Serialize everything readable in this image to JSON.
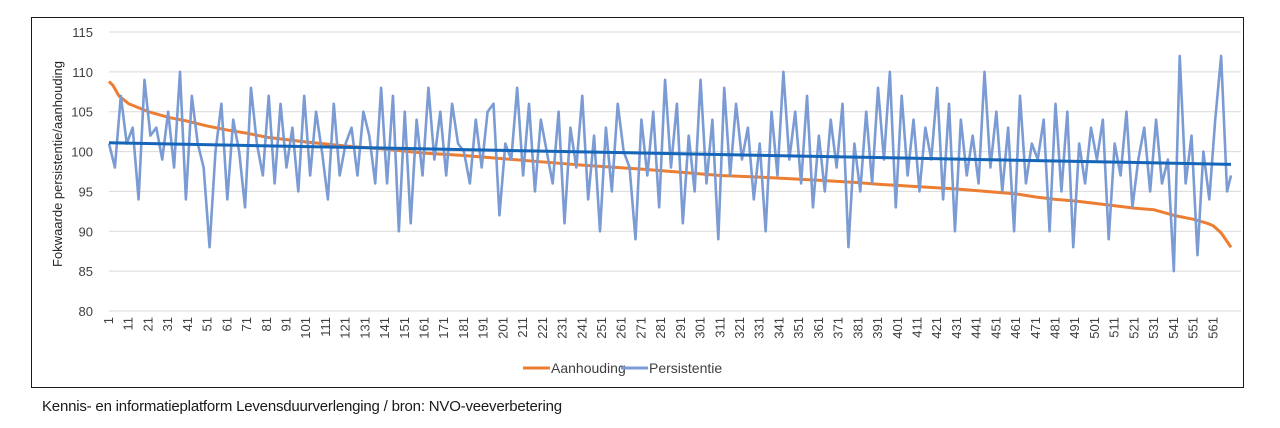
{
  "caption": "Kennis- en informatieplatform Levensduurverlenging / bron: NVO-veeverbetering",
  "chart_data": {
    "type": "line",
    "title": "",
    "xlabel": "",
    "ylabel": "Fokwaarde persistentie/aanhouding",
    "ylim": [
      80,
      115
    ],
    "yticks": [
      "80",
      "85",
      "90",
      "95",
      "100",
      "105",
      "110",
      "115"
    ],
    "xlim": [
      1,
      570
    ],
    "xticks": [
      "1",
      "11",
      "21",
      "31",
      "41",
      "51",
      "61",
      "71",
      "81",
      "91",
      "101",
      "111",
      "121",
      "131",
      "141",
      "151",
      "161",
      "171",
      "181",
      "191",
      "201",
      "211",
      "221",
      "231",
      "241",
      "251",
      "261",
      "271",
      "281",
      "291",
      "301",
      "311",
      "321",
      "331",
      "341",
      "351",
      "361",
      "371",
      "381",
      "391",
      "401",
      "411",
      "421",
      "431",
      "441",
      "451",
      "461",
      "471",
      "481",
      "491",
      "501",
      "511",
      "521",
      "531",
      "541",
      "551",
      "561"
    ],
    "grid": true,
    "legend_position": "bottom",
    "colors": {
      "aanhouding": "#ED7D31",
      "persistentie": "#7B9BD4",
      "trend": "#1565B8",
      "grid": "#D9D9D9"
    },
    "series": [
      {
        "name": "Aanhouding",
        "x": [
          1,
          3,
          6,
          11,
          16,
          21,
          31,
          41,
          51,
          61,
          71,
          81,
          91,
          101,
          121,
          141,
          161,
          181,
          201,
          221,
          241,
          271,
          291,
          311,
          331,
          361,
          381,
          391,
          411,
          431,
          451,
          461,
          471,
          481,
          491,
          501,
          511,
          521,
          531,
          541,
          551,
          558,
          561,
          565,
          570
        ],
        "values": [
          108.8,
          108.3,
          107.0,
          106.0,
          105.5,
          105.0,
          104.3,
          103.8,
          103.2,
          102.7,
          102.3,
          101.8,
          101.5,
          101.2,
          100.7,
          100.3,
          99.8,
          99.5,
          99.1,
          98.7,
          98.3,
          97.8,
          97.4,
          97.0,
          96.8,
          96.4,
          96.1,
          95.9,
          95.6,
          95.3,
          94.9,
          94.7,
          94.3,
          94.0,
          93.8,
          93.5,
          93.2,
          92.9,
          92.7,
          92.0,
          91.5,
          91.0,
          90.7,
          89.8,
          88.0
        ]
      },
      {
        "name": "Persistentie",
        "step": 3,
        "values": [
          101,
          98,
          107,
          101,
          103,
          94,
          109,
          102,
          103,
          99,
          105,
          98,
          110,
          94,
          107,
          101,
          98,
          88,
          100,
          106,
          94,
          104,
          100,
          93,
          108,
          101,
          97,
          107,
          96,
          106,
          98,
          103,
          95,
          107,
          97,
          105,
          100,
          94,
          106,
          97,
          101,
          103,
          97,
          105,
          102,
          96,
          108,
          96,
          107,
          90,
          105,
          91,
          104,
          97,
          108,
          99,
          105,
          97,
          106,
          101,
          100,
          96,
          104,
          98,
          105,
          106,
          92,
          101,
          99,
          108,
          97,
          106,
          95,
          104,
          100,
          96,
          105,
          91,
          103,
          98,
          107,
          94,
          102,
          90,
          103,
          95,
          106,
          100,
          98,
          89,
          104,
          97,
          105,
          93,
          109,
          98,
          106,
          91,
          102,
          95,
          109,
          96,
          104,
          89,
          108,
          97,
          106,
          99,
          103,
          94,
          101,
          90,
          105,
          97,
          110,
          99,
          105,
          96,
          107,
          93,
          102,
          95,
          104,
          98,
          106,
          88,
          101,
          95,
          105,
          96,
          108,
          99,
          110,
          93,
          107,
          97,
          104,
          95,
          103,
          99,
          108,
          94,
          106,
          90,
          104,
          97,
          102,
          96,
          110,
          98,
          105,
          95,
          103,
          90,
          107,
          96,
          101,
          99,
          104,
          90,
          106,
          95,
          105,
          88,
          101,
          96,
          103,
          99,
          104,
          89,
          101,
          97,
          105,
          93,
          99,
          103,
          95,
          104,
          96,
          99,
          85,
          112,
          96,
          102,
          87,
          100,
          94,
          104,
          112,
          95,
          97
        ]
      },
      {
        "name": "Trendline Persistentie",
        "x": [
          1,
          570
        ],
        "values": [
          101.1,
          98.4
        ]
      }
    ],
    "legend": [
      "Aanhouding",
      "Persistentie"
    ]
  }
}
